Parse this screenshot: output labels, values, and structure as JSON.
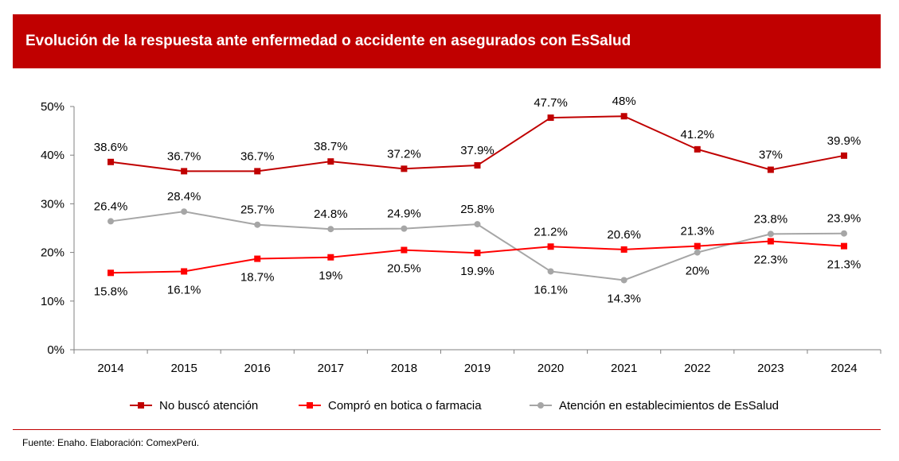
{
  "header": {
    "title": "Evolución de la respuesta ante enfermedad o accidente en asegurados con EsSalud"
  },
  "footer": {
    "source": "Fuente: Enaho. Elaboración: ComexPerú."
  },
  "colors": {
    "header_bg": "#c00000",
    "no_busco": "#c00000",
    "compro": "#ff0000",
    "essalud": "#a6a6a6"
  },
  "chart_data": {
    "type": "line",
    "title": "",
    "xlabel": "",
    "ylabel": "",
    "ylim": [
      0,
      50
    ],
    "y_ticks": [
      "0%",
      "10%",
      "20%",
      "30%",
      "40%",
      "50%"
    ],
    "y_tick_values": [
      0,
      10,
      20,
      30,
      40,
      50
    ],
    "categories": [
      "2014",
      "2015",
      "2016",
      "2017",
      "2018",
      "2019",
      "2020",
      "2021",
      "2022",
      "2023",
      "2024"
    ],
    "grid": false,
    "legend_position": "bottom",
    "series": [
      {
        "name": "No buscó atención",
        "color": "#c00000",
        "marker": "square",
        "values": [
          38.6,
          36.7,
          36.7,
          38.7,
          37.2,
          37.9,
          47.7,
          48.0,
          41.2,
          37.0,
          39.9
        ],
        "labels": [
          "38.6%",
          "36.7%",
          "36.7%",
          "38.7%",
          "37.2%",
          "37.9%",
          "47.7%",
          "48%",
          "41.2%",
          "37%",
          "39.9%"
        ],
        "label_pos": [
          "above",
          "above",
          "above",
          "above",
          "above",
          "above",
          "above",
          "above",
          "above",
          "above",
          "above"
        ]
      },
      {
        "name": "Compró en botica o farmacia",
        "color": "#ff0000",
        "marker": "square",
        "values": [
          15.8,
          16.1,
          18.7,
          19.0,
          20.5,
          19.9,
          21.2,
          20.6,
          21.3,
          22.3,
          21.3
        ],
        "labels": [
          "15.8%",
          "16.1%",
          "18.7%",
          "19%",
          "20.5%",
          "19.9%",
          "21.2%",
          "20.6%",
          "21.3%",
          "22.3%",
          "21.3%"
        ],
        "label_pos": [
          "below",
          "below",
          "below",
          "below",
          "below",
          "below",
          "above",
          "above",
          "above",
          "below",
          "below"
        ]
      },
      {
        "name": "Atención en establecimientos de EsSalud",
        "color": "#a6a6a6",
        "marker": "circle",
        "values": [
          26.4,
          28.4,
          25.7,
          24.8,
          24.9,
          25.8,
          16.1,
          14.3,
          20.0,
          23.8,
          23.9
        ],
        "labels": [
          "26.4%",
          "28.4%",
          "25.7%",
          "24.8%",
          "24.9%",
          "25.8%",
          "16.1%",
          "14.3%",
          "20%",
          "23.8%",
          "23.9%"
        ],
        "label_pos": [
          "above",
          "above",
          "above",
          "above",
          "above",
          "above",
          "below",
          "below",
          "below",
          "above",
          "above"
        ]
      }
    ]
  }
}
